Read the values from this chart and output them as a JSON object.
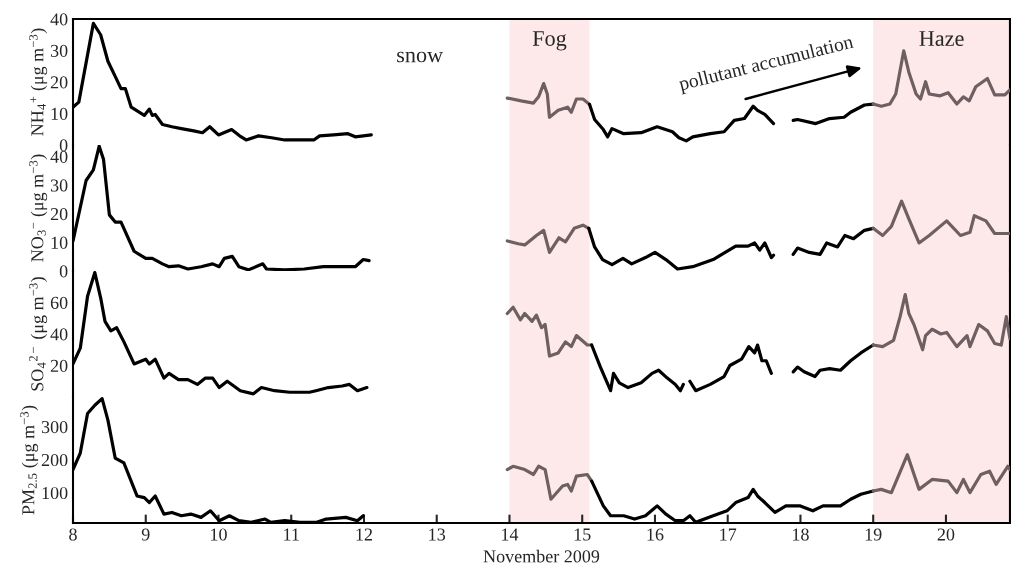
{
  "chart_data": [
    {
      "type": "line",
      "ylabel": "NH$_{4}$$^{+}$ (μg m$^{−3}$)",
      "xlim": [
        8,
        20.88
      ],
      "xticks": [
        8,
        9,
        10,
        11,
        12,
        13,
        14,
        15,
        16,
        17,
        18,
        19,
        20
      ],
      "ylim": [
        0,
        40
      ],
      "yticks": [
        0,
        10,
        20,
        30,
        40
      ],
      "tick_labels": "y",
      "annotations": [
        "snow",
        "pollutant accumulation"
      ],
      "bands": [
        {
          "axis": "x",
          "from": 14,
          "to": 15.1,
          "label": "Fog",
          "color": "#fde9e9"
        },
        {
          "axis": "x",
          "from": 19,
          "to": 20.88,
          "label": "Haze",
          "color": "#fde9e9"
        }
      ],
      "series": [
        {
          "color": "#000000",
          "x": [
            8,
            8.08,
            8.28,
            8.38,
            8.48,
            8.58,
            8.66,
            8.72,
            8.8,
            8.98,
            9.05,
            9.09,
            9.13,
            9.23,
            9.36,
            9.49,
            9.66,
            9.78,
            9.88,
            10.0,
            10.18,
            10.29,
            10.38,
            10.55,
            10.73,
            10.91,
            11.08,
            11.31,
            11.39,
            11.58,
            11.78,
            11.88,
            11.99,
            12.1
          ],
          "values": [
            12,
            13.6,
            38.6,
            35,
            26.6,
            21.8,
            17.9,
            17.9,
            12,
            9.4,
            11.4,
            9.4,
            9.7,
            6.5,
            5.8,
            5.2,
            4.5,
            3.9,
            5.8,
            3.2,
            4.9,
            2.9,
            1.6,
            2.9,
            2.3,
            1.6,
            1.6,
            1.6,
            2.9,
            3.2,
            3.6,
            2.6,
            2.9,
            3.2
          ]
        },
        {
          "color": "#6e5f62",
          "x": [
            13.97,
            14.16,
            14.33,
            14.4,
            14.47,
            14.52,
            14.55,
            14.67,
            14.8,
            14.85,
            14.92,
            15.01,
            15.1
          ],
          "values": [
            14.9,
            14.0,
            13.3,
            15.3,
            19.5,
            16.2,
            8.8,
            11.0,
            12.0,
            10.4,
            14.6,
            14.6,
            12.9
          ]
        },
        {
          "color": "#000000",
          "x": [
            15.1,
            15.17,
            15.29,
            15.35,
            15.41,
            15.57,
            15.81,
            16.03,
            16.24,
            16.33,
            16.43,
            16.52,
            16.76,
            16.95,
            17.09,
            17.23,
            17.35,
            17.41,
            17.51,
            17.63
          ],
          "values": [
            12.9,
            8.1,
            4.9,
            2.6,
            5.2,
            3.6,
            3.9,
            5.8,
            4.2,
            2.3,
            1.3,
            2.6,
            3.6,
            4.2,
            7.8,
            8.4,
            12.3,
            11.0,
            9.7,
            6.8
          ]
        },
        {
          "color": "#000000",
          "x": [
            17.9,
            17.96,
            18.21,
            18.4,
            18.6,
            18.69,
            18.88,
            19.0
          ],
          "values": [
            7.8,
            8.1,
            6.8,
            8.4,
            8.8,
            10.4,
            12.7,
            13.0
          ]
        },
        {
          "color": "#6e5f62",
          "x": [
            19.0,
            19.11,
            19.23,
            19.31,
            19.42,
            19.49,
            19.59,
            19.65,
            19.72,
            19.77,
            19.92,
            20.03,
            20.15,
            20.24,
            20.32,
            20.41,
            20.57,
            20.67,
            20.81,
            20.88
          ],
          "values": [
            13.0,
            12.3,
            13.0,
            16.2,
            29.9,
            23.1,
            16.2,
            14.6,
            20.1,
            16.2,
            15.6,
            16.6,
            13.0,
            15.3,
            14.0,
            18.5,
            21.1,
            15.9,
            15.9,
            17.5
          ]
        }
      ]
    },
    {
      "type": "line",
      "ylabel": "NO$_{3}$$^{−}$ (μg m$^{−3}$)",
      "xlim": [
        8,
        20.88
      ],
      "xticks": [
        8,
        9,
        10,
        11,
        12,
        13,
        14,
        15,
        16,
        17,
        18,
        19,
        20
      ],
      "ylim": [
        0,
        44
      ],
      "yticks": [
        0,
        10,
        20,
        30,
        40
      ],
      "tick_labels": "y",
      "bands": [
        {
          "axis": "x",
          "from": 14,
          "to": 15.1,
          "color": "#fde9e9"
        },
        {
          "axis": "x",
          "from": 19,
          "to": 20.88,
          "color": "#fde9e9"
        }
      ],
      "series": [
        {
          "color": "#000000",
          "x": [
            8,
            8.18,
            8.28,
            8.36,
            8.42,
            8.5,
            8.58,
            8.66,
            8.84,
            9.0,
            9.09,
            9.23,
            9.32,
            9.45,
            9.58,
            9.76,
            9.92,
            10.01,
            10.08,
            10.19,
            10.28,
            10.41,
            10.61,
            10.66,
            10.91,
            11.18,
            11.44,
            11.71,
            11.88,
            11.99,
            12.07
          ],
          "values": [
            10.5,
            31.6,
            35.3,
            43.6,
            38.9,
            19.6,
            17.1,
            17.1,
            6.9,
            4.4,
            4.4,
            2.5,
            1.5,
            1.8,
            0.7,
            1.5,
            2.5,
            1.5,
            4.4,
            5.1,
            1.5,
            0.4,
            2.5,
            0.7,
            0.4,
            0.7,
            1.5,
            1.5,
            1.5,
            4.0,
            3.6
          ]
        },
        {
          "color": "#6e5f62",
          "x": [
            13.97,
            14.12,
            14.21,
            14.37,
            14.47,
            14.55,
            14.68,
            14.77,
            14.89,
            15.01,
            15.09
          ],
          "values": [
            10.5,
            9.5,
            9.1,
            12.4,
            14.2,
            6.5,
            11.6,
            10.2,
            14.9,
            16.0,
            14.9
          ]
        },
        {
          "color": "#000000",
          "x": [
            15.09,
            15.17,
            15.28,
            15.41,
            15.56,
            15.68,
            15.87,
            16.0,
            16.15,
            16.31,
            16.52,
            16.8,
            17.11,
            17.28,
            17.37,
            17.44,
            17.51,
            17.6,
            17.63
          ],
          "values": [
            14.9,
            8.4,
            4.0,
            2.2,
            4.4,
            2.5,
            4.7,
            6.5,
            4.0,
            0.7,
            1.5,
            4.0,
            8.7,
            8.7,
            9.8,
            7.3,
            9.8,
            4.7,
            5.5
          ]
        },
        {
          "color": "#000000",
          "x": [
            17.9,
            17.96,
            18.12,
            18.27,
            18.36,
            18.51,
            18.61,
            18.73,
            18.88,
            19.0
          ],
          "values": [
            5.8,
            8.0,
            6.5,
            5.8,
            9.8,
            8.4,
            12.4,
            11.3,
            14.2,
            14.9
          ]
        },
        {
          "color": "#6e5f62",
          "x": [
            19.0,
            19.13,
            19.25,
            19.39,
            19.49,
            19.63,
            19.77,
            20.01,
            20.2,
            20.33,
            20.39,
            20.55,
            20.67,
            20.88
          ],
          "values": [
            14.9,
            12.4,
            15.6,
            24.4,
            18.2,
            9.8,
            12.4,
            17.5,
            12.4,
            13.5,
            19.3,
            17.5,
            13.1,
            13.1
          ]
        }
      ]
    },
    {
      "type": "line",
      "ylabel": "SO$_{4}$$^{2−}$ (μg m$^{−3}$)",
      "xlim": [
        8,
        20.88
      ],
      "xticks": [
        8,
        9,
        10,
        11,
        12,
        13,
        14,
        15,
        16,
        17,
        18,
        19,
        20
      ],
      "ylim": [
        0,
        80
      ],
      "yticks": [
        20,
        40,
        60
      ],
      "tick_labels": "y",
      "bands": [
        {
          "axis": "x",
          "from": 14,
          "to": 15.1,
          "color": "#fde9e9"
        },
        {
          "axis": "x",
          "from": 19,
          "to": 20.88,
          "color": "#fde9e9"
        }
      ],
      "series": [
        {
          "color": "#000000",
          "x": [
            8,
            8.1,
            8.2,
            8.3,
            8.38,
            8.44,
            8.52,
            8.6,
            8.7,
            8.84,
            9.0,
            9.05,
            9.13,
            9.25,
            9.32,
            9.45,
            9.58,
            9.71,
            9.82,
            9.92,
            10.01,
            10.12,
            10.3,
            10.48,
            10.59,
            10.77,
            10.98,
            11.25,
            11.34,
            11.51,
            11.7,
            11.8,
            11.91,
            12.04
          ],
          "values": [
            21,
            31,
            64,
            79,
            63,
            48,
            42,
            44,
            35,
            21,
            24,
            21,
            24,
            12,
            15,
            11,
            11,
            8,
            12,
            12,
            6,
            10,
            4,
            2,
            6,
            4,
            3,
            3,
            4,
            6,
            7,
            8,
            4,
            6
          ]
        },
        {
          "color": "#6e5f62",
          "x": [
            13.97,
            14.05,
            14.15,
            14.21,
            14.31,
            14.37,
            14.44,
            14.49,
            14.55,
            14.67,
            14.77,
            14.85,
            14.92,
            15.07,
            15.13
          ],
          "values": [
            53,
            57,
            49,
            53,
            48,
            52,
            44,
            46,
            26,
            28,
            35,
            32,
            39,
            33,
            33
          ]
        },
        {
          "color": "#000000",
          "x": [
            15.13,
            15.25,
            15.39,
            15.43,
            15.51,
            15.63,
            15.81,
            15.96,
            16.05,
            16.17,
            16.28,
            16.35,
            16.39,
            16.44,
            16.48,
            16.56,
            16.76,
            16.95,
            17.03,
            17.19,
            17.29,
            17.37,
            17.41,
            17.47,
            17.53,
            17.6
          ],
          "values": [
            33,
            19,
            4,
            15,
            9,
            6,
            9,
            15,
            17,
            12,
            8,
            4,
            8,
            null,
            10,
            4,
            8,
            13,
            20,
            24,
            32,
            28,
            33,
            23,
            23,
            15
          ]
        },
        {
          "color": "#000000",
          "x": [
            17.9,
            17.96,
            18.05,
            18.2,
            18.27,
            18.4,
            18.55,
            18.69,
            18.83,
            19.0
          ],
          "values": [
            16,
            19,
            16,
            13,
            17,
            18,
            17,
            23,
            28,
            33
          ]
        },
        {
          "color": "#6e5f62",
          "x": [
            19.0,
            19.13,
            19.28,
            19.37,
            19.44,
            19.49,
            19.56,
            19.68,
            19.72,
            19.81,
            19.93,
            20.01,
            20.15,
            20.29,
            20.33,
            20.45,
            20.57,
            20.67,
            20.76,
            20.83,
            20.88
          ],
          "values": [
            33,
            32,
            36,
            51,
            65,
            53,
            46,
            30,
            39,
            43,
            40,
            41,
            32,
            39,
            32,
            46,
            42,
            34,
            33,
            51,
            37
          ]
        }
      ]
    },
    {
      "type": "line",
      "ylabel": "PM$_{2.5}$ (μg m$^{−3}$)",
      "xlabel": "November 2009",
      "xlim": [
        8,
        20.88
      ],
      "xticks": [
        8,
        9,
        10,
        11,
        12,
        13,
        14,
        15,
        16,
        17,
        18,
        19,
        20
      ],
      "ylim": [
        8,
        390
      ],
      "yticks": [
        100,
        200,
        300
      ],
      "bands": [
        {
          "axis": "x",
          "from": 14,
          "to": 15.1,
          "color": "#fde9e9"
        },
        {
          "axis": "x",
          "from": 19,
          "to": 20.88,
          "color": "#fde9e9"
        }
      ],
      "series": [
        {
          "color": "#000000",
          "x": [
            8,
            8.1,
            8.2,
            8.3,
            8.4,
            8.48,
            8.58,
            8.7,
            8.88,
            8.98,
            9.05,
            9.13,
            9.25,
            9.36,
            9.49,
            9.62,
            9.76,
            9.89,
            10.01,
            10.15,
            10.28,
            10.45,
            10.64,
            10.72,
            10.91,
            11.12,
            11.35,
            11.48,
            11.75,
            11.91,
            11.99
          ],
          "values": [
            170,
            220,
            340,
            365,
            385,
            320,
            205,
            190,
            90,
            85,
            70,
            90,
            35,
            40,
            30,
            35,
            25,
            45,
            15,
            30,
            15,
            10,
            20,
            10,
            15,
            10,
            10,
            20,
            25,
            15,
            30
          ]
        },
        {
          "color": "#6e5f62",
          "x": [
            13.97,
            14.05,
            14.21,
            14.33,
            14.4,
            14.49,
            14.57,
            14.73,
            14.8,
            14.85,
            14.92,
            15.07,
            15.13
          ],
          "values": [
            170,
            180,
            170,
            155,
            180,
            170,
            80,
            120,
            125,
            105,
            150,
            155,
            135
          ]
        },
        {
          "color": "#000000",
          "x": [
            15.13,
            15.29,
            15.39,
            15.57,
            15.72,
            15.87,
            16.03,
            16.15,
            16.28,
            16.39,
            16.48,
            16.56,
            16.8,
            16.99,
            17.11,
            17.28,
            17.35,
            17.41,
            17.51,
            17.65,
            17.8,
            17.99,
            18.17,
            18.31,
            18.55,
            18.69,
            18.83,
            19.0
          ],
          "values": [
            135,
            60,
            30,
            30,
            20,
            30,
            60,
            35,
            15,
            15,
            30,
            10,
            30,
            45,
            70,
            85,
            110,
            90,
            70,
            40,
            60,
            60,
            45,
            60,
            60,
            80,
            95,
            105
          ]
        },
        {
          "color": "#6e5f62",
          "x": [
            19.0,
            19.11,
            19.25,
            19.47,
            19.63,
            19.81,
            20.03,
            20.15,
            20.24,
            20.33,
            20.48,
            20.6,
            20.69,
            20.85,
            20.88
          ],
          "values": [
            105,
            110,
            100,
            215,
            110,
            140,
            135,
            100,
            140,
            100,
            155,
            165,
            125,
            180,
            170
          ]
        }
      ]
    }
  ]
}
